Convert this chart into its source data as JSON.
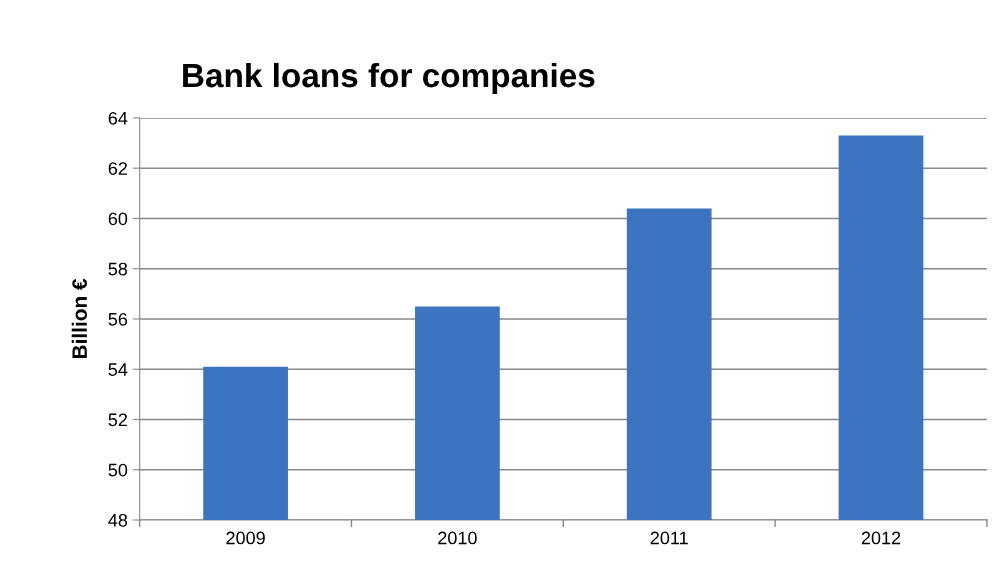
{
  "chart_data": {
    "type": "bar",
    "title": "Bank loans for companies",
    "ylabel": "Billion €",
    "categories": [
      "2009",
      "2010",
      "2011",
      "2012"
    ],
    "values": [
      54.1,
      56.5,
      60.4,
      63.3
    ],
    "color": "#3b74c0",
    "ylim": [
      48,
      64
    ],
    "yticks": [
      48,
      50,
      52,
      54,
      56,
      58,
      60,
      62,
      64
    ],
    "grid": "y"
  }
}
